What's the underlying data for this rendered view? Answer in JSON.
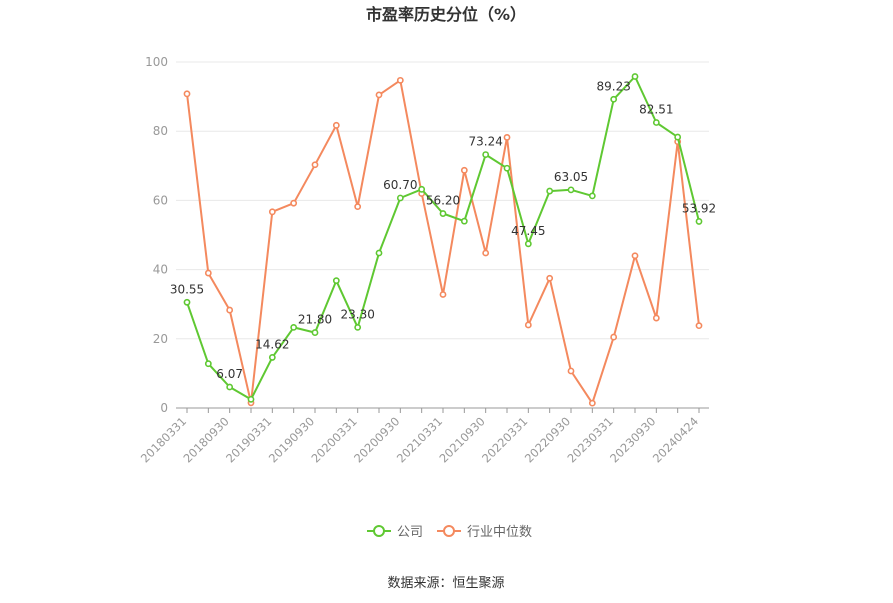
{
  "title": "市盈率历史分位（%）",
  "source": "数据来源：恒生聚源",
  "colors": {
    "company": "#5fc832",
    "industry": "#f4895e",
    "axis": "#999999",
    "grid": "#e8e8e8",
    "text": "#333333"
  },
  "chart_data": {
    "type": "line",
    "title": "市盈率历史分位（%）",
    "ylim": [
      0,
      100
    ],
    "yticks": [
      0,
      20,
      40,
      60,
      80,
      100
    ],
    "grid": true,
    "legend_position": "bottom-center",
    "x": [
      "20180331",
      "20180630",
      "20180930",
      "20181231",
      "20190331",
      "20190630",
      "20190930",
      "20191231",
      "20200331",
      "20200630",
      "20200930",
      "20201231",
      "20210331",
      "20210630",
      "20210930",
      "20211231",
      "20220331",
      "20220630",
      "20220930",
      "20221231",
      "20230331",
      "20230630",
      "20230930",
      "20231231",
      "20240424"
    ],
    "xtick_labels": [
      "20180331",
      "20180930",
      "20190331",
      "20190930",
      "20200331",
      "20200930",
      "20210331",
      "20210930",
      "20220331",
      "20220930",
      "20230331",
      "20230930",
      "20240424"
    ],
    "series": [
      {
        "name": "公司",
        "color": "#5fc832",
        "values": [
          30.55,
          12.8,
          6.07,
          2.5,
          14.62,
          23.3,
          21.8,
          36.8,
          23.3,
          44.8,
          60.7,
          63.2,
          56.2,
          54.0,
          73.24,
          69.3,
          47.45,
          62.7,
          63.05,
          61.3,
          89.23,
          95.8,
          82.51,
          78.3,
          53.92
        ],
        "labels": [
          "30.55",
          "",
          "6.07",
          "",
          "14.62",
          "",
          "21.80",
          "",
          "23.30",
          "",
          "60.70",
          "",
          "56.20",
          "",
          "73.24",
          "",
          "47.45",
          "",
          "63.05",
          "",
          "89.23",
          "",
          "82.51",
          "",
          "53.92"
        ]
      },
      {
        "name": "行业中位数",
        "color": "#f4895e",
        "values": [
          90.8,
          39.0,
          28.3,
          1.5,
          56.7,
          59.2,
          70.3,
          81.7,
          58.2,
          90.5,
          94.7,
          62.0,
          32.8,
          68.7,
          44.8,
          78.2,
          24.0,
          37.5,
          10.7,
          1.4,
          20.5,
          44.0,
          26.0,
          77.0,
          23.8
        ]
      }
    ]
  }
}
